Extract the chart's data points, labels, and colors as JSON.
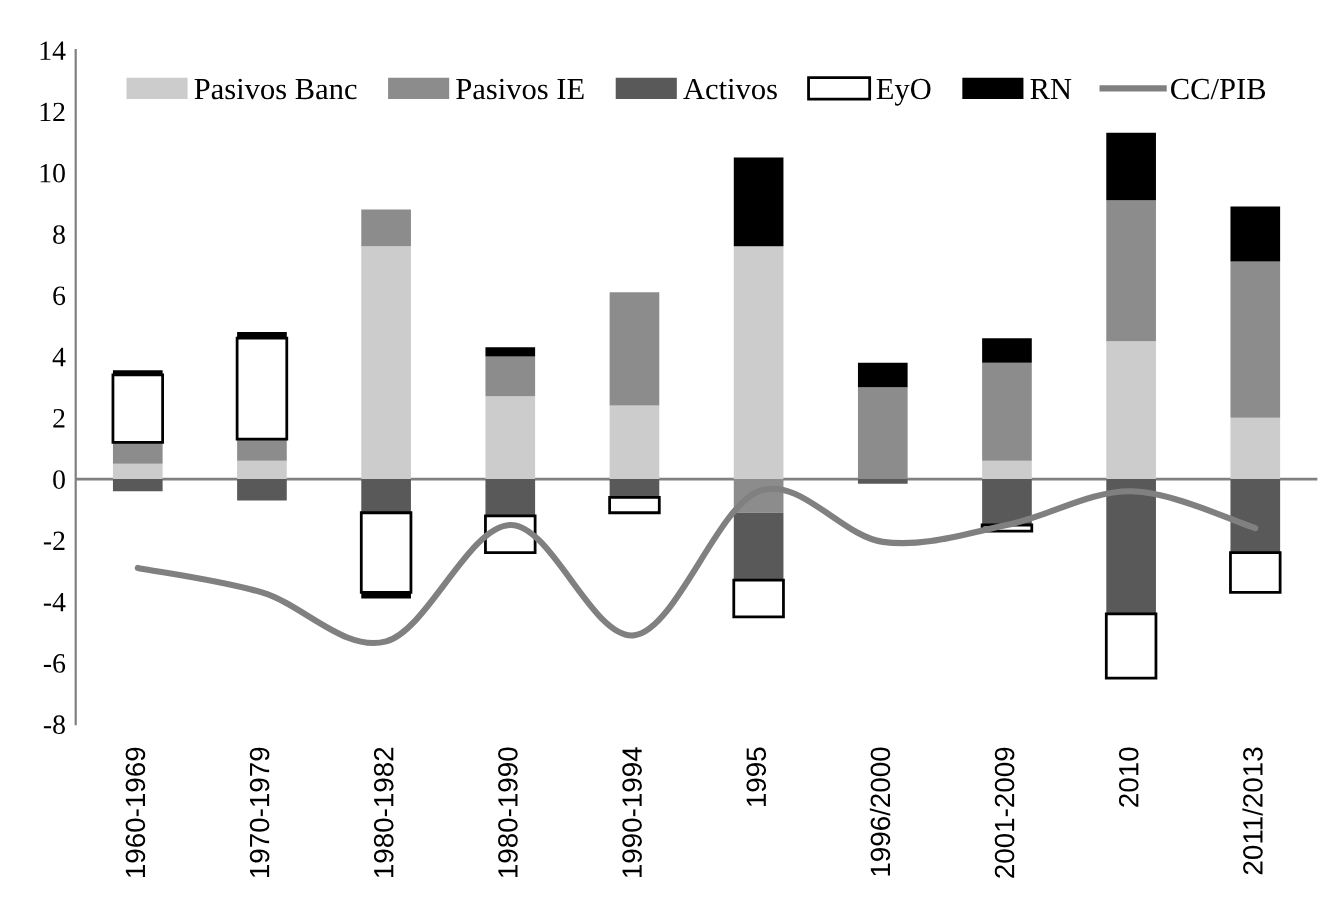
{
  "chart_data": {
    "type": "bar",
    "stacked": true,
    "categories": [
      "1960-1969",
      "1970-1979",
      "1980-1982",
      "1980-1990",
      "1990-1994",
      "1995",
      "1996/2000",
      "2001-2009",
      "2010",
      "2011/2013"
    ],
    "series": [
      {
        "name": "Pasivos Banc",
        "color": "#cccccc",
        "values": [
          0.5,
          0.6,
          7.6,
          2.7,
          2.4,
          7.6,
          null,
          0.6,
          4.5,
          2.0
        ]
      },
      {
        "name": "Pasivos IE",
        "color": "#8c8c8c",
        "values": [
          0.7,
          0.7,
          1.2,
          1.3,
          3.7,
          -1.1,
          3.0,
          3.2,
          4.6,
          5.1
        ]
      },
      {
        "name": "Activos",
        "color": "#595959",
        "values": [
          -0.4,
          -0.7,
          -1.1,
          -1.2,
          -0.6,
          -2.2,
          -0.15,
          -1.5,
          -4.4,
          -2.4
        ]
      },
      {
        "name": "EyO",
        "color": "#ffffff",
        "values": [
          2.2,
          3.3,
          -2.6,
          -1.2,
          -0.5,
          -1.2,
          null,
          -0.2,
          -2.1,
          -1.3
        ]
      },
      {
        "name": "RN",
        "color": "#000000",
        "values": [
          0.15,
          0.2,
          -0.2,
          0.3,
          null,
          2.9,
          0.8,
          0.8,
          2.2,
          1.8
        ]
      },
      {
        "name": "CC/PIB",
        "type": "line",
        "color": "#808080",
        "values": [
          -2.9,
          -3.7,
          -5.3,
          -1.5,
          -5.1,
          -0.4,
          -2.05,
          -1.5,
          -0.4,
          -1.6
        ]
      }
    ],
    "ylim": [
      -8,
      14
    ],
    "yticks": [
      -8,
      -6,
      -4,
      -2,
      0,
      2,
      4,
      6,
      8,
      10,
      12,
      14
    ],
    "ref_lines": [
      {
        "axis": "y",
        "value": 0,
        "color": "#808080"
      }
    ],
    "grid": false,
    "legend": "top"
  }
}
